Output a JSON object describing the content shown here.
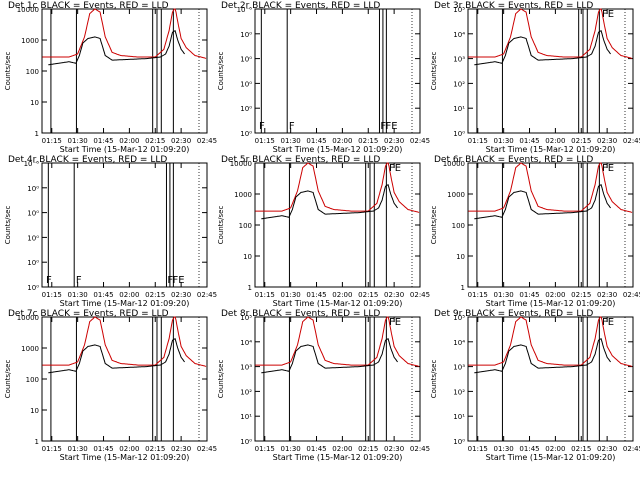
{
  "chart_data": [
    {
      "type": "line",
      "title": "Det 1c BLACK = Events, RED = LLD",
      "xlabel": "Start Time (15-Mar-12 01:09:20)",
      "ylabel": "Counts/sec",
      "yscale": "log",
      "ylim": [
        1,
        10000
      ],
      "ytick_labels": [
        "1",
        "10",
        "100",
        "1000",
        "10000"
      ],
      "xtick_labels": [
        "01:15",
        "01:30",
        "01:45",
        "02:00",
        "02:15",
        "02:30",
        "02:45"
      ],
      "profile": "normal",
      "annotations": []
    },
    {
      "type": "line",
      "title": "Det 2r BLACK = Events, RED = LLD",
      "xlabel": "Start Time (15-Mar-12 01:09:20)",
      "ylabel": "Counts/sec",
      "yscale": "log",
      "ylim": [
        1,
        1.000001
      ],
      "ytick_labels": [
        "10⁰",
        "10⁰",
        "10⁰",
        "10⁰",
        "10⁰",
        "10⁻⁶"
      ],
      "xtick_labels": [
        "01:15",
        "01:30",
        "01:45",
        "02:00",
        "02:15",
        "02:30",
        "02:45"
      ],
      "profile": "empty",
      "annotations": [
        "F",
        "F",
        "F",
        "FE"
      ]
    },
    {
      "type": "line",
      "title": "Det 3r BLACK = Events, RED = LLD",
      "xlabel": "Start Time (15-Mar-12 01:09:20)",
      "ylabel": "Counts/sec",
      "yscale": "log",
      "ylim": [
        1,
        100000
      ],
      "ytick_labels": [
        "10⁰",
        "10¹",
        "10²",
        "10³",
        "10⁴",
        "10⁵"
      ],
      "xtick_labels": [
        "01:15",
        "01:30",
        "01:45",
        "02:00",
        "02:15",
        "02:30",
        "02:45"
      ],
      "profile": "normal",
      "annotations": [
        "FE"
      ]
    },
    {
      "type": "line",
      "title": "Det 4r BLACK = Events, RED = LLD",
      "xlabel": "Start Time (15-Mar-12 01:09:20)",
      "ylabel": "Counts/sec",
      "yscale": "log",
      "ylim": [
        1,
        1.000001
      ],
      "ytick_labels": [
        "10⁰",
        "10⁰",
        "10⁰",
        "10⁰",
        "10⁰",
        "10⁻⁶"
      ],
      "xtick_labels": [
        "01:15",
        "01:30",
        "01:45",
        "02:00",
        "02:15",
        "02:30",
        "02:45"
      ],
      "profile": "empty",
      "annotations": [
        "F",
        "F",
        "F",
        "FE"
      ]
    },
    {
      "type": "line",
      "title": "Det 5r BLACK = Events, RED = LLD",
      "xlabel": "Start Time (15-Mar-12 01:09:20)",
      "ylabel": "Counts/sec",
      "yscale": "log",
      "ylim": [
        1,
        10000
      ],
      "ytick_labels": [
        "1",
        "10",
        "100",
        "1000",
        "10000"
      ],
      "xtick_labels": [
        "01:15",
        "01:30",
        "01:45",
        "02:00",
        "02:15",
        "02:30",
        "02:45"
      ],
      "profile": "normal",
      "annotations": [
        "FE"
      ]
    },
    {
      "type": "line",
      "title": "Det 6r BLACK = Events, RED = LLD",
      "xlabel": "Start Time (15-Mar-12 01:09:20)",
      "ylabel": "Counts/sec",
      "yscale": "log",
      "ylim": [
        1,
        10000
      ],
      "ytick_labels": [
        "1",
        "10",
        "100",
        "1000",
        "10000"
      ],
      "xtick_labels": [
        "01:15",
        "01:30",
        "01:45",
        "02:00",
        "02:15",
        "02:30",
        "02:45"
      ],
      "profile": "normal",
      "annotations": [
        "FE"
      ]
    },
    {
      "type": "line",
      "title": "Det 7c BLACK = Events, RED = LLD",
      "xlabel": "Start Time (15-Mar-12 01:09:20)",
      "ylabel": "Counts/sec",
      "yscale": "log",
      "ylim": [
        1,
        10000
      ],
      "ytick_labels": [
        "1",
        "10",
        "100",
        "1000",
        "10000"
      ],
      "xtick_labels": [
        "01:15",
        "01:30",
        "01:45",
        "02:00",
        "02:15",
        "02:30",
        "02:45"
      ],
      "profile": "normal",
      "annotations": []
    },
    {
      "type": "line",
      "title": "Det 8r BLACK = Events, RED = LLD",
      "xlabel": "Start Time (15-Mar-12 01:09:20)",
      "ylabel": "Counts/sec",
      "yscale": "log",
      "ylim": [
        1,
        100000
      ],
      "ytick_labels": [
        "10⁰",
        "10¹",
        "10²",
        "10³",
        "10⁴",
        "10⁵"
      ],
      "xtick_labels": [
        "01:15",
        "01:30",
        "01:45",
        "02:00",
        "02:15",
        "02:30",
        "02:45"
      ],
      "profile": "normal",
      "annotations": [
        "FE"
      ]
    },
    {
      "type": "line",
      "title": "Det 9r BLACK = Events, RED = LLD",
      "xlabel": "Start Time (15-Mar-12 01:09:20)",
      "ylabel": "Counts/sec",
      "yscale": "log",
      "ylim": [
        1,
        100000
      ],
      "ytick_labels": [
        "10⁰",
        "10¹",
        "10²",
        "10³",
        "10⁴",
        "10⁵"
      ],
      "xtick_labels": [
        "01:15",
        "01:30",
        "01:45",
        "02:00",
        "02:15",
        "02:30",
        "02:45"
      ],
      "profile": "normal",
      "annotations": [
        "FE"
      ]
    }
  ],
  "colors": {
    "events": "#000000",
    "lld": "#cc0000"
  }
}
